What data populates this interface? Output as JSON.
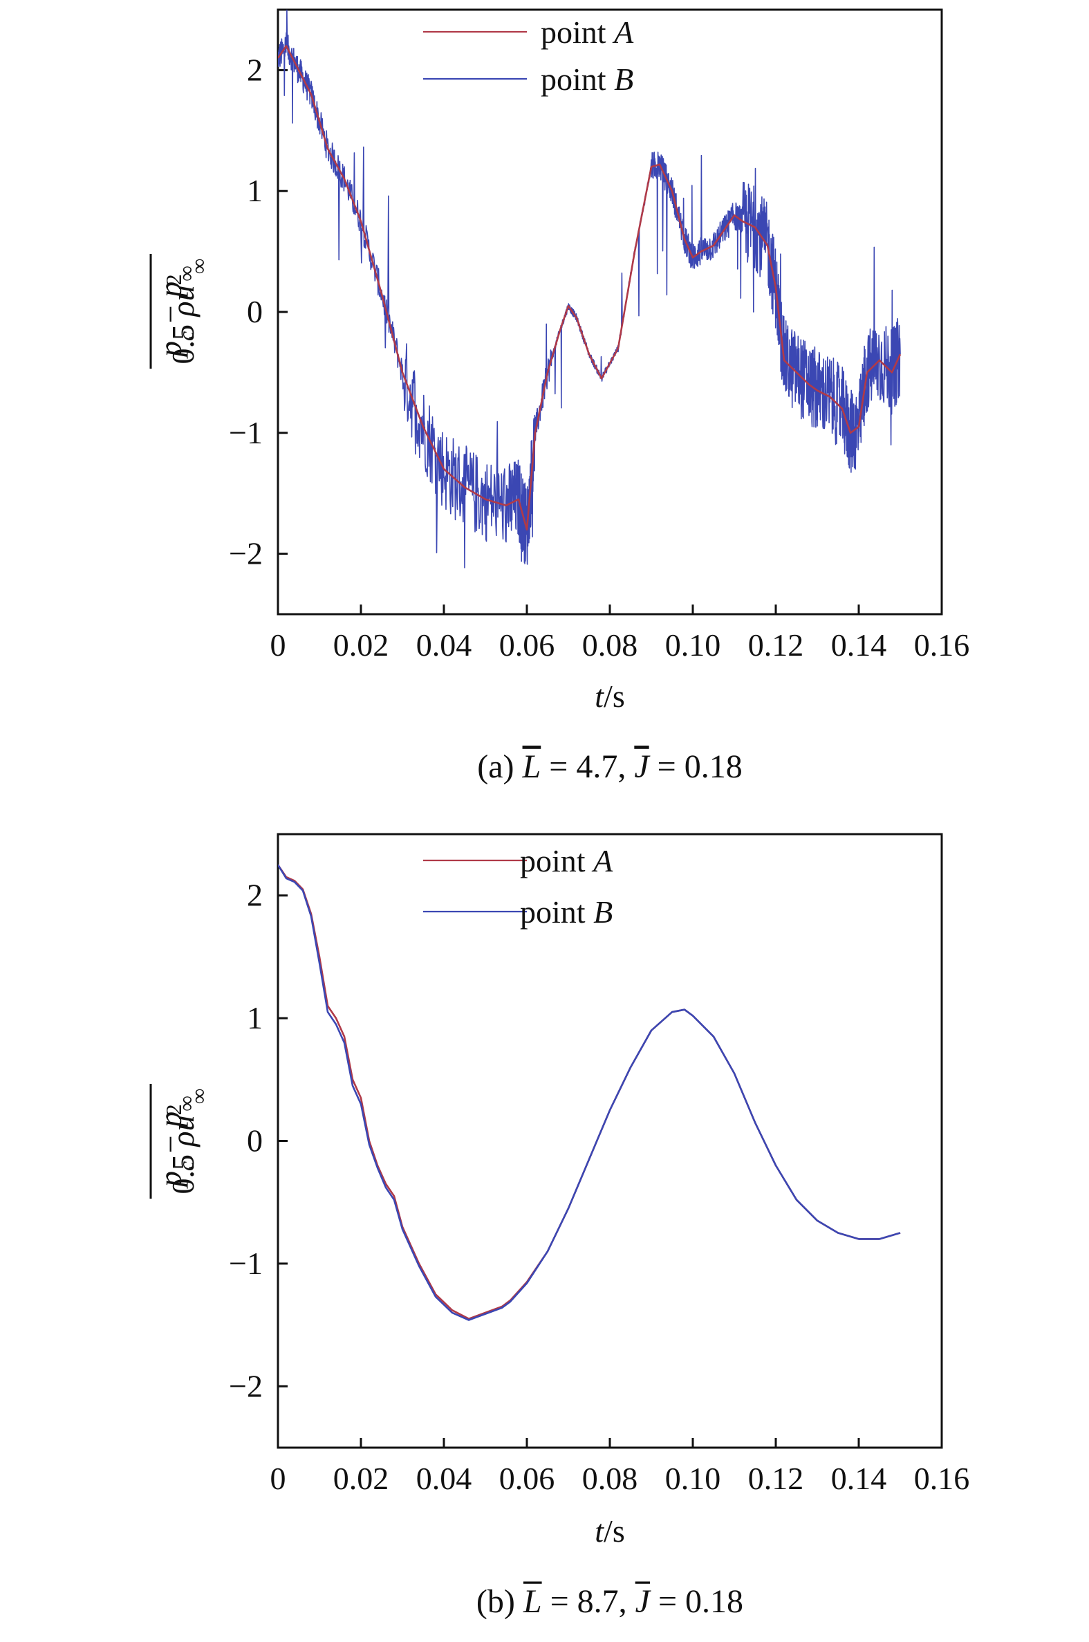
{
  "colors": {
    "pointA": "#b03a48",
    "pointB": "#3b47b3"
  },
  "chart_data": [
    {
      "type": "line",
      "caption": {
        "prefix": "(a) ",
        "L": "L",
        "eqL": " = 4.7, ",
        "J": "J",
        "eqJ": " = 0.18"
      },
      "xlabel": {
        "var": "t",
        "unit": "/s"
      },
      "ylabel": {
        "num_p1": "p",
        "num_sub1": "c",
        "num_minus": " − ",
        "num_p2": "p",
        "num_sub2": "∞",
        "den_pre": "0.5 ",
        "den_rho": "ρu",
        "den_sup": "2",
        "den_sub": "∞"
      },
      "xlim": [
        0,
        0.16
      ],
      "ylim": [
        -2.5,
        2.5
      ],
      "xticks": [
        "0",
        "0.02",
        "0.04",
        "0.06",
        "0.08",
        "0.10",
        "0.12",
        "0.14",
        "0.16"
      ],
      "yticks": [
        "−2",
        "−1",
        "0",
        "1",
        "2"
      ],
      "legend": {
        "position": "top-center",
        "entries": [
          {
            "label": "point ",
            "italic": "A"
          },
          {
            "label": "point ",
            "italic": "B"
          }
        ]
      },
      "series": [
        {
          "name": "point A",
          "x": [
            0,
            0.002,
            0.005,
            0.008,
            0.012,
            0.016,
            0.02,
            0.025,
            0.03,
            0.035,
            0.04,
            0.045,
            0.05,
            0.055,
            0.058,
            0.06,
            0.062,
            0.065,
            0.068,
            0.07,
            0.072,
            0.075,
            0.078,
            0.082,
            0.086,
            0.09,
            0.092,
            0.095,
            0.098,
            0.1,
            0.102,
            0.105,
            0.108,
            0.11,
            0.112,
            0.115,
            0.118,
            0.12,
            0.122,
            0.125,
            0.128,
            0.13,
            0.133,
            0.136,
            0.138,
            0.14,
            0.142,
            0.145,
            0.148,
            0.15
          ],
          "y": [
            2.1,
            2.2,
            2.0,
            1.8,
            1.35,
            1.1,
            0.75,
            0.15,
            -0.5,
            -0.95,
            -1.3,
            -1.45,
            -1.55,
            -1.6,
            -1.55,
            -1.8,
            -1.0,
            -0.5,
            -0.15,
            0.05,
            -0.05,
            -0.35,
            -0.55,
            -0.3,
            0.5,
            1.2,
            1.22,
            1.0,
            0.6,
            0.45,
            0.5,
            0.55,
            0.7,
            0.8,
            0.75,
            0.7,
            0.55,
            0.2,
            -0.4,
            -0.5,
            -0.6,
            -0.65,
            -0.7,
            -0.8,
            -1.0,
            -0.95,
            -0.5,
            -0.4,
            -0.5,
            -0.35
          ]
        },
        {
          "name": "point B",
          "x": [
            0,
            0.002,
            0.005,
            0.008,
            0.012,
            0.016,
            0.02,
            0.025,
            0.03,
            0.035,
            0.04,
            0.045,
            0.05,
            0.055,
            0.058,
            0.06,
            0.062,
            0.065,
            0.068,
            0.07,
            0.072,
            0.075,
            0.078,
            0.082,
            0.086,
            0.09,
            0.092,
            0.095,
            0.098,
            0.1,
            0.102,
            0.105,
            0.108,
            0.11,
            0.112,
            0.115,
            0.118,
            0.12,
            0.122,
            0.125,
            0.128,
            0.13,
            0.133,
            0.136,
            0.138,
            0.14,
            0.142,
            0.145,
            0.148,
            0.15
          ],
          "y": [
            2.1,
            2.2,
            2.0,
            1.8,
            1.35,
            1.1,
            0.75,
            0.15,
            -0.5,
            -0.95,
            -1.3,
            -1.45,
            -1.55,
            -1.6,
            -1.55,
            -1.8,
            -1.0,
            -0.5,
            -0.15,
            0.05,
            -0.05,
            -0.35,
            -0.55,
            -0.3,
            0.5,
            1.2,
            1.22,
            1.0,
            0.6,
            0.45,
            0.5,
            0.55,
            0.7,
            0.8,
            0.75,
            0.7,
            0.55,
            0.2,
            -0.4,
            -0.5,
            -0.6,
            -0.65,
            -0.7,
            -0.8,
            -1.0,
            -0.95,
            -0.5,
            -0.4,
            -0.5,
            -0.35
          ],
          "noise": true
        }
      ]
    },
    {
      "type": "line",
      "caption": {
        "prefix": "(b) ",
        "L": "L",
        "eqL": " = 8.7, ",
        "J": "J",
        "eqJ": " = 0.18"
      },
      "xlabel": {
        "var": "t",
        "unit": "/s"
      },
      "ylabel": {
        "num_p1": "p",
        "num_sub1": "c",
        "num_minus": " − ",
        "num_p2": "p",
        "num_sub2": "∞",
        "den_pre": "0.5 ",
        "den_rho": "ρu",
        "den_sup": "2",
        "den_sub": "∞"
      },
      "xlim": [
        0,
        0.16
      ],
      "ylim": [
        -2.5,
        2.5
      ],
      "xticks": [
        "0",
        "0.02",
        "0.04",
        "0.06",
        "0.08",
        "0.10",
        "0.12",
        "0.14",
        "0.16"
      ],
      "yticks": [
        "−2",
        "−1",
        "0",
        "1",
        "2"
      ],
      "legend": {
        "position": "top-center",
        "entries": [
          {
            "label": "point ",
            "italic": "A"
          },
          {
            "label": "point ",
            "italic": "B"
          }
        ]
      },
      "series": [
        {
          "name": "point A",
          "x": [
            0,
            0.002,
            0.004,
            0.006,
            0.008,
            0.01,
            0.012,
            0.014,
            0.016,
            0.018,
            0.02,
            0.022,
            0.024,
            0.026,
            0.028,
            0.03,
            0.034,
            0.038,
            0.042,
            0.046,
            0.05,
            0.054,
            0.056,
            0.06,
            0.065,
            0.07,
            0.075,
            0.08,
            0.085,
            0.09,
            0.095,
            0.098,
            0.1,
            0.105,
            0.11,
            0.115,
            0.12,
            0.125,
            0.13,
            0.135,
            0.14,
            0.145,
            0.15
          ],
          "y": [
            2.25,
            2.15,
            2.12,
            2.05,
            1.85,
            1.5,
            1.1,
            1.0,
            0.85,
            0.5,
            0.35,
            0.0,
            -0.2,
            -0.35,
            -0.45,
            -0.7,
            -1.0,
            -1.25,
            -1.38,
            -1.45,
            -1.4,
            -1.35,
            -1.3,
            -1.15,
            -0.9,
            -0.55,
            -0.15,
            0.25,
            0.6,
            0.9,
            1.05,
            1.07,
            1.02,
            0.85,
            0.55,
            0.15,
            -0.2,
            -0.48,
            -0.65,
            -0.75,
            -0.8,
            -0.8,
            -0.75
          ]
        },
        {
          "name": "point B",
          "x": [
            0,
            0.002,
            0.004,
            0.006,
            0.008,
            0.01,
            0.012,
            0.014,
            0.016,
            0.018,
            0.02,
            0.022,
            0.024,
            0.026,
            0.028,
            0.03,
            0.034,
            0.038,
            0.042,
            0.046,
            0.05,
            0.054,
            0.056,
            0.06,
            0.065,
            0.07,
            0.075,
            0.08,
            0.085,
            0.09,
            0.095,
            0.098,
            0.1,
            0.105,
            0.11,
            0.115,
            0.12,
            0.125,
            0.13,
            0.135,
            0.14,
            0.145,
            0.15
          ],
          "y": [
            2.25,
            2.14,
            2.11,
            2.04,
            1.83,
            1.45,
            1.05,
            0.95,
            0.8,
            0.45,
            0.3,
            -0.03,
            -0.22,
            -0.38,
            -0.48,
            -0.72,
            -1.02,
            -1.27,
            -1.4,
            -1.46,
            -1.41,
            -1.36,
            -1.31,
            -1.16,
            -0.9,
            -0.55,
            -0.15,
            0.25,
            0.6,
            0.9,
            1.05,
            1.07,
            1.02,
            0.85,
            0.55,
            0.15,
            -0.2,
            -0.48,
            -0.65,
            -0.75,
            -0.8,
            -0.8,
            -0.75
          ]
        }
      ]
    }
  ]
}
